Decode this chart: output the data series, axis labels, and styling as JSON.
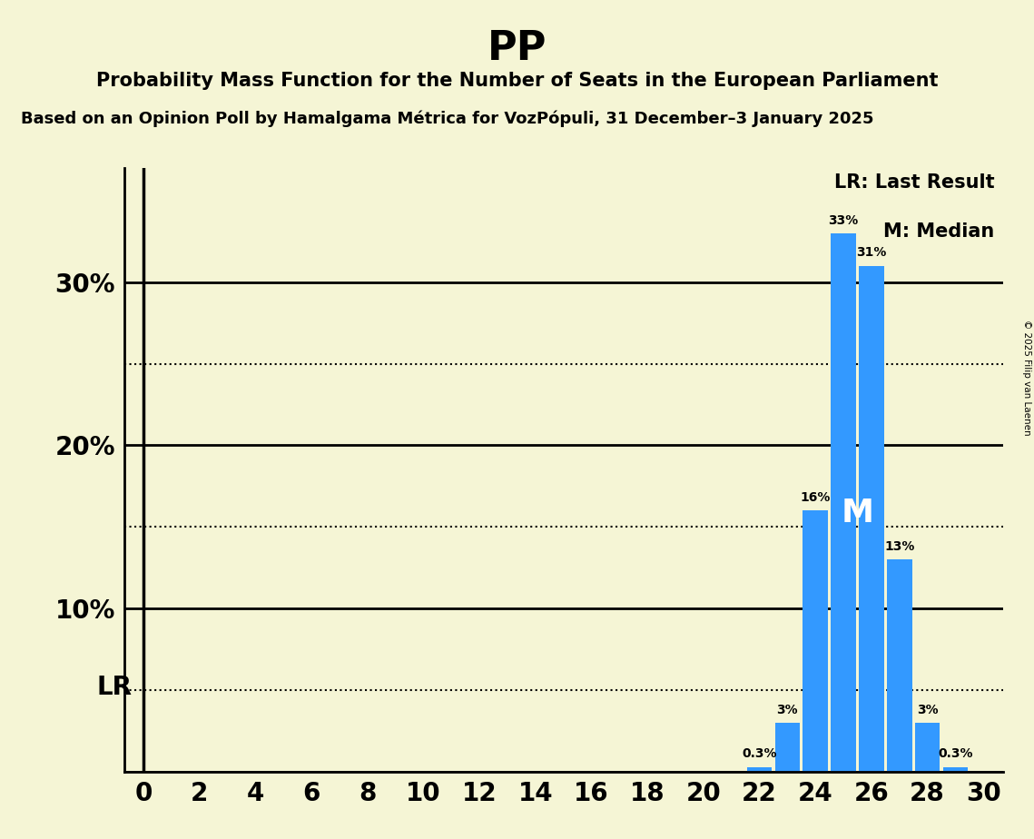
{
  "title": "PP",
  "subtitle": "Probability Mass Function for the Number of Seats in the European Parliament",
  "source_line": "Based on an Opinion Poll by Hamalgama Métrica for VozPópuli, 31 December–3 January 2025",
  "copyright": "© 2025 Filip van Laenen",
  "seats": [
    0,
    1,
    2,
    3,
    4,
    5,
    6,
    7,
    8,
    9,
    10,
    11,
    12,
    13,
    14,
    15,
    16,
    17,
    18,
    19,
    20,
    21,
    22,
    23,
    24,
    25,
    26,
    27,
    28,
    29,
    30
  ],
  "probabilities": [
    0,
    0,
    0,
    0,
    0,
    0,
    0,
    0,
    0,
    0,
    0,
    0,
    0,
    0,
    0,
    0,
    0,
    0,
    0,
    0,
    0,
    0,
    0.3,
    3,
    16,
    33,
    31,
    13,
    3,
    0.3,
    0
  ],
  "bar_color": "#3399ff",
  "background_color": "#f5f5d5",
  "last_result_seat": 0,
  "median_seat": 25,
  "dotted_lines": [
    5,
    15,
    25
  ],
  "solid_lines": [
    10,
    20,
    30
  ],
  "xlim": [
    -0.7,
    30.7
  ],
  "ylim": [
    0,
    37
  ],
  "legend_lr": "LR: Last Result",
  "legend_m": "M: Median",
  "bar_width": 0.9
}
